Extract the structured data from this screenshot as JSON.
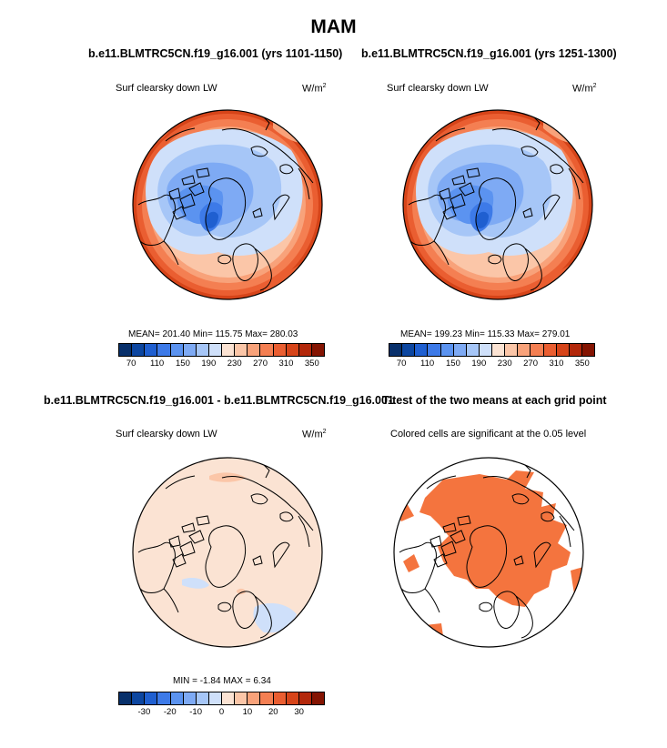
{
  "title": "MAM",
  "chart_data": [
    {
      "type": "heatmap",
      "title": "b.e11.BLMTRC5CN.f19_g16.001 (yrs 1101-1150)",
      "subtitle": "Surf clearsky down LW",
      "units": "W/m",
      "units_sup": "2",
      "stats": "MEAN= 201.40  Min= 115.75  Max= 280.03",
      "mean": 201.4,
      "min": 115.75,
      "max": 280.03,
      "colorbar_ticks": [
        "70",
        "110",
        "150",
        "190",
        "230",
        "270",
        "310",
        "350"
      ],
      "colorbar_range": [
        50,
        370
      ]
    },
    {
      "type": "heatmap",
      "title": "b.e11.BLMTRC5CN.f19_g16.001 (yrs 1251-1300)",
      "subtitle": "Surf clearsky down LW",
      "units": "W/m",
      "units_sup": "2",
      "stats": "MEAN= 199.23  Min= 115.33  Max= 279.01",
      "mean": 199.23,
      "min": 115.33,
      "max": 279.01,
      "colorbar_ticks": [
        "70",
        "110",
        "150",
        "190",
        "230",
        "270",
        "310",
        "350"
      ],
      "colorbar_range": [
        50,
        370
      ]
    },
    {
      "type": "heatmap",
      "title": "b.e11.BLMTRC5CN.f19_g16.001 - b.e11.BLMTRC5CN.f19_g16.001",
      "subtitle": "Surf clearsky down LW",
      "units": "W/m",
      "units_sup": "2",
      "stats": "MIN =  -1.84 MAX =   6.34",
      "min": -1.84,
      "max": 6.34,
      "colorbar_ticks": [
        "-30",
        "-20",
        "-10",
        "0",
        "10",
        "20",
        "30"
      ],
      "colorbar_range": [
        -40,
        40
      ]
    },
    {
      "type": "heatmap",
      "title": "T-test of the two means at each grid point",
      "subtitle": "Colored cells are significant at the 0.05 level",
      "significance_level": 0.05
    }
  ],
  "colors": {
    "diverging": [
      "#08306b",
      "#0c46a0",
      "#1f5fd0",
      "#3d7ae8",
      "#5b93f0",
      "#7eaaf4",
      "#a6c6f7",
      "#cfe0fa",
      "#fbe3d3",
      "#fbc6a8",
      "#f8a27a",
      "#f47f52",
      "#ea5e31",
      "#d64419",
      "#b3280b",
      "#841402"
    ],
    "significance": "#f4743e",
    "land_line": "#000000"
  }
}
